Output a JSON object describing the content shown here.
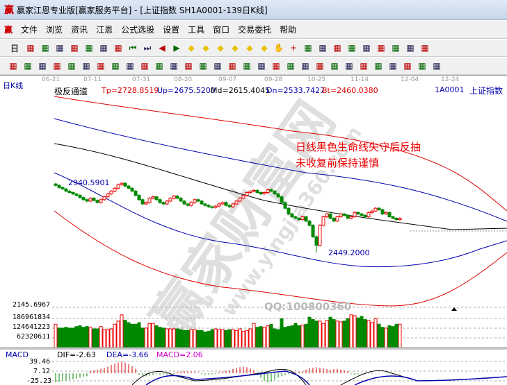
{
  "window": {
    "title": "赢家江恩专业版[赢家服务平台] - [上证指数  SH1A0001-139日K线]",
    "logo": "赢"
  },
  "menu": [
    "文件",
    "浏览",
    "资讯",
    "江恩",
    "公式选股",
    "设置",
    "工具",
    "窗口",
    "交易委托",
    "帮助"
  ],
  "toolbar1": {
    "period": "日",
    "icons": [
      "window-icon",
      "notes-icon",
      "chart3-icon",
      "chart9-icon",
      "candle-icon",
      "calc-icon",
      "flag-icon",
      "first-icon",
      "last-icon",
      "prev-icon",
      "next-icon",
      "diamond-icon",
      "diamond-icon",
      "diamond-icon",
      "diamond-icon",
      "diamond-icon",
      "diamond-icon",
      "hand-icon",
      "crosshair-icon",
      "line-icon",
      "gift-icon",
      "star-icon",
      "calendar-icon",
      "calculator-icon",
      "report-icon",
      "save-icon",
      "network-icon",
      "print-icon"
    ]
  },
  "toolbar2": {
    "icons": [
      "pen-icon",
      "grid-icon",
      "gold-icon",
      "gold2-icon",
      "fib-icon",
      "spiral-icon",
      "fan-icon",
      "circle-icon",
      "grid2-icon",
      "n2-icon",
      "angle-icon",
      "target-icon",
      "star-icon",
      "square-icon",
      "lines-icon",
      "shen-icon",
      "win-icon",
      "ruler-icon",
      "measure-icon",
      "box-icon",
      "fan2-icon",
      "box2-icon",
      "box3-icon",
      "angle2-icon",
      "wave-icon",
      "grid3-icon",
      "grid4-icon",
      "parallel-icon",
      "table-icon",
      "percent-icon"
    ]
  },
  "chart": {
    "period_label": "日K线",
    "dates": [
      "06-21",
      "07-11",
      "07-31",
      "08-20",
      "09-07",
      "09-28",
      "10-25",
      "11-14",
      "12-04",
      "12-24"
    ],
    "indicator": {
      "name": "极反通道",
      "tp": "Tp=2728.8519",
      "up": "Up=2675.5200",
      "md": "Md=2615.4045",
      "dn": "Dn=2533.7427",
      "bt": "Bt=2460.0380"
    },
    "symbol": "1A0001",
    "symbol_name": "上证指数",
    "high_label": "2940.5901",
    "low_label": "2449.2000",
    "annotation": [
      "日线黑色生命线失守后反抽",
      "未收复前保持谨慎"
    ],
    "watermark": "赢家财富网",
    "watermark_url": "www.yingjia360.com",
    "qq": "QQ:100800360",
    "volume_axis": [
      "2145.6967",
      "186961834",
      "124641223",
      "62320611"
    ],
    "macd": {
      "label": "MACD",
      "dif": "DIF=-2.63",
      "dea": "DEA=-3.66",
      "macd": "MACD=2.06",
      "axis": [
        "39.46",
        "7.12",
        "-25.23"
      ]
    },
    "colors": {
      "up": "#e00000",
      "down": "#008000",
      "md": "#000000",
      "up_band": "#0000aa",
      "tp_band": "#d00000"
    }
  },
  "chart_data": {
    "type": "candlestick",
    "closes": [
      2920,
      2905,
      2895,
      2880,
      2870,
      2860,
      2850,
      2835,
      2820,
      2810,
      2830,
      2815,
      2800,
      2820,
      2840,
      2860,
      2880,
      2900,
      2925,
      2935,
      2915,
      2900,
      2880,
      2850,
      2820,
      2790,
      2800,
      2830,
      2840,
      2820,
      2800,
      2790,
      2810,
      2830,
      2845,
      2830,
      2810,
      2790,
      2780,
      2800,
      2820,
      2810,
      2790,
      2780,
      2770,
      2765,
      2775,
      2790,
      2800,
      2780,
      2770,
      2790,
      2810,
      2830,
      2850,
      2870,
      2880,
      2885,
      2870,
      2860,
      2870,
      2890,
      2880,
      2860,
      2840,
      2800,
      2760,
      2720,
      2700,
      2690,
      2680,
      2700,
      2670,
      2640,
      2560,
      2500,
      2640,
      2700,
      2720,
      2690,
      2670,
      2700,
      2720,
      2710,
      2690,
      2700,
      2730,
      2720,
      2710,
      2700,
      2730,
      2740,
      2760,
      2750,
      2720,
      2730,
      2700,
      2690,
      2680,
      2690
    ],
    "volumes": [
      150000000,
      125000000,
      125000000,
      130000000,
      125000000,
      125000000,
      135000000,
      140000000,
      130000000,
      135000000,
      130000000,
      120000000,
      120000000,
      135000000,
      115000000,
      115000000,
      120000000,
      150000000,
      170000000,
      210000000,
      175000000,
      160000000,
      150000000,
      150000000,
      160000000,
      125000000,
      125000000,
      155000000,
      155000000,
      140000000,
      130000000,
      125000000,
      120000000,
      120000000,
      120000000,
      120000000,
      115000000,
      110000000,
      110000000,
      115000000,
      115000000,
      110000000,
      110000000,
      100000000,
      105000000,
      115000000,
      120000000,
      115000000,
      115000000,
      110000000,
      115000000,
      115000000,
      110000000,
      120000000,
      105000000,
      110000000,
      120000000,
      155000000,
      130000000,
      135000000,
      130000000,
      140000000,
      150000000,
      120000000,
      115000000,
      185000000,
      130000000,
      135000000,
      140000000,
      155000000,
      140000000,
      145000000,
      150000000,
      195000000,
      180000000,
      170000000,
      170000000,
      155000000,
      175000000,
      195000000,
      180000000,
      170000000,
      165000000,
      170000000,
      185000000,
      210000000,
      205000000,
      190000000,
      200000000,
      180000000,
      175000000,
      160000000,
      185000000,
      150000000,
      130000000,
      125000000,
      140000000,
      135000000,
      150000000,
      150000000
    ],
    "macd_hist": [
      -30,
      -28,
      -25,
      -24,
      -22,
      -20,
      -18,
      -15,
      -12,
      -10,
      8,
      10,
      12,
      15,
      18,
      22,
      28,
      32,
      36,
      39,
      35,
      30,
      24,
      15,
      -5,
      -8,
      -10,
      -8,
      -6,
      -3,
      -5,
      -4,
      -6,
      -5,
      -3,
      5,
      6,
      7,
      6,
      5,
      4,
      3,
      -3,
      -4,
      -5,
      -3,
      -2,
      4,
      6,
      8,
      10,
      14,
      18,
      20,
      22,
      20,
      16,
      10,
      -5,
      -15,
      -25,
      -30,
      -28,
      -22,
      -15,
      -10,
      -6,
      -3,
      -2,
      3,
      5,
      6,
      12,
      16,
      18,
      20,
      18,
      16,
      14,
      12,
      14,
      15,
      12,
      10,
      8,
      -3,
      -5,
      -3,
      -2,
      -2,
      -1,
      -2,
      -1,
      -1,
      -1,
      -1,
      -1,
      -1,
      -1,
      -1
    ]
  }
}
